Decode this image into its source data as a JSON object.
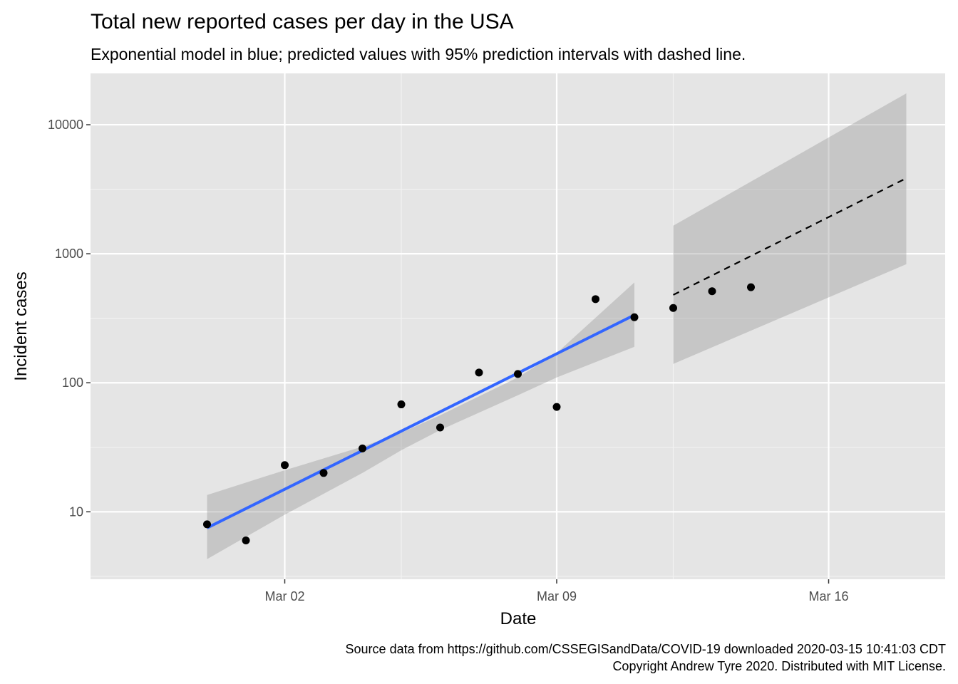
{
  "chart_data": {
    "type": "scatter",
    "title": "Total new reported cases per day in the USA",
    "subtitle": "Exponential model in blue; predicted values with 95% prediction intervals with dashed line.",
    "xlabel": "Date",
    "ylabel": "Incident cases",
    "y_scale": "log10",
    "ylim": [
      3,
      25000
    ],
    "xlim": [
      "2020-02-26",
      "2020-03-19"
    ],
    "x_ticks": [
      {
        "date": "2020-03-02",
        "label": "Mar 02"
      },
      {
        "date": "2020-03-09",
        "label": "Mar 09"
      },
      {
        "date": "2020-03-16",
        "label": "Mar 16"
      }
    ],
    "x_minor_ticks": [
      "2020-03-05",
      "2020-03-12"
    ],
    "y_ticks": [
      {
        "value": 10,
        "label": "10"
      },
      {
        "value": 100,
        "label": "100"
      },
      {
        "value": 1000,
        "label": "1000"
      },
      {
        "value": 10000,
        "label": "10000"
      }
    ],
    "y_minor_ticks": [
      3.16,
      31.6,
      316,
      3160
    ],
    "grid": true,
    "panel_color": "#e5e5e5",
    "observed": {
      "name": "observed",
      "color": "#000000",
      "x": [
        "2020-02-29",
        "2020-03-01",
        "2020-03-02",
        "2020-03-03",
        "2020-03-04",
        "2020-03-05",
        "2020-03-06",
        "2020-03-07",
        "2020-03-08",
        "2020-03-09",
        "2020-03-10",
        "2020-03-11",
        "2020-03-12",
        "2020-03-13",
        "2020-03-14"
      ],
      "y": [
        8,
        6,
        23,
        20,
        31,
        68,
        45,
        120,
        117,
        65,
        445,
        322,
        380,
        512,
        550
      ]
    },
    "model_fit": {
      "name": "exponential model",
      "color": "#3366ff",
      "x": [
        "2020-02-29",
        "2020-03-11"
      ],
      "y": [
        7.5,
        335
      ],
      "interval_x": [
        "2020-02-29",
        "2020-03-02",
        "2020-03-04",
        "2020-03-05",
        "2020-03-06",
        "2020-03-08",
        "2020-03-09",
        "2020-03-11"
      ],
      "interval_lower": [
        4.3,
        9.5,
        20,
        30,
        43,
        80,
        110,
        190
      ],
      "interval_upper": [
        13.5,
        21,
        32,
        41,
        56,
        110,
        170,
        600
      ],
      "interval_color": "#999999"
    },
    "prediction": {
      "name": "predicted values",
      "color": "#000000",
      "style": "dashed",
      "x": [
        "2020-03-12",
        "2020-03-18"
      ],
      "y": [
        480,
        3850
      ],
      "interval_x": [
        "2020-03-12",
        "2020-03-18"
      ],
      "interval_lower": [
        140,
        830
      ],
      "interval_upper": [
        1650,
        17500
      ],
      "interval_color": "#999999"
    },
    "caption_lines": [
      "Source data from https://github.com/CSSEGISandData/COVID-19 downloaded  2020-03-15 10:41:03 CDT",
      "Copyright Andrew Tyre 2020. Distributed with MIT License."
    ]
  }
}
